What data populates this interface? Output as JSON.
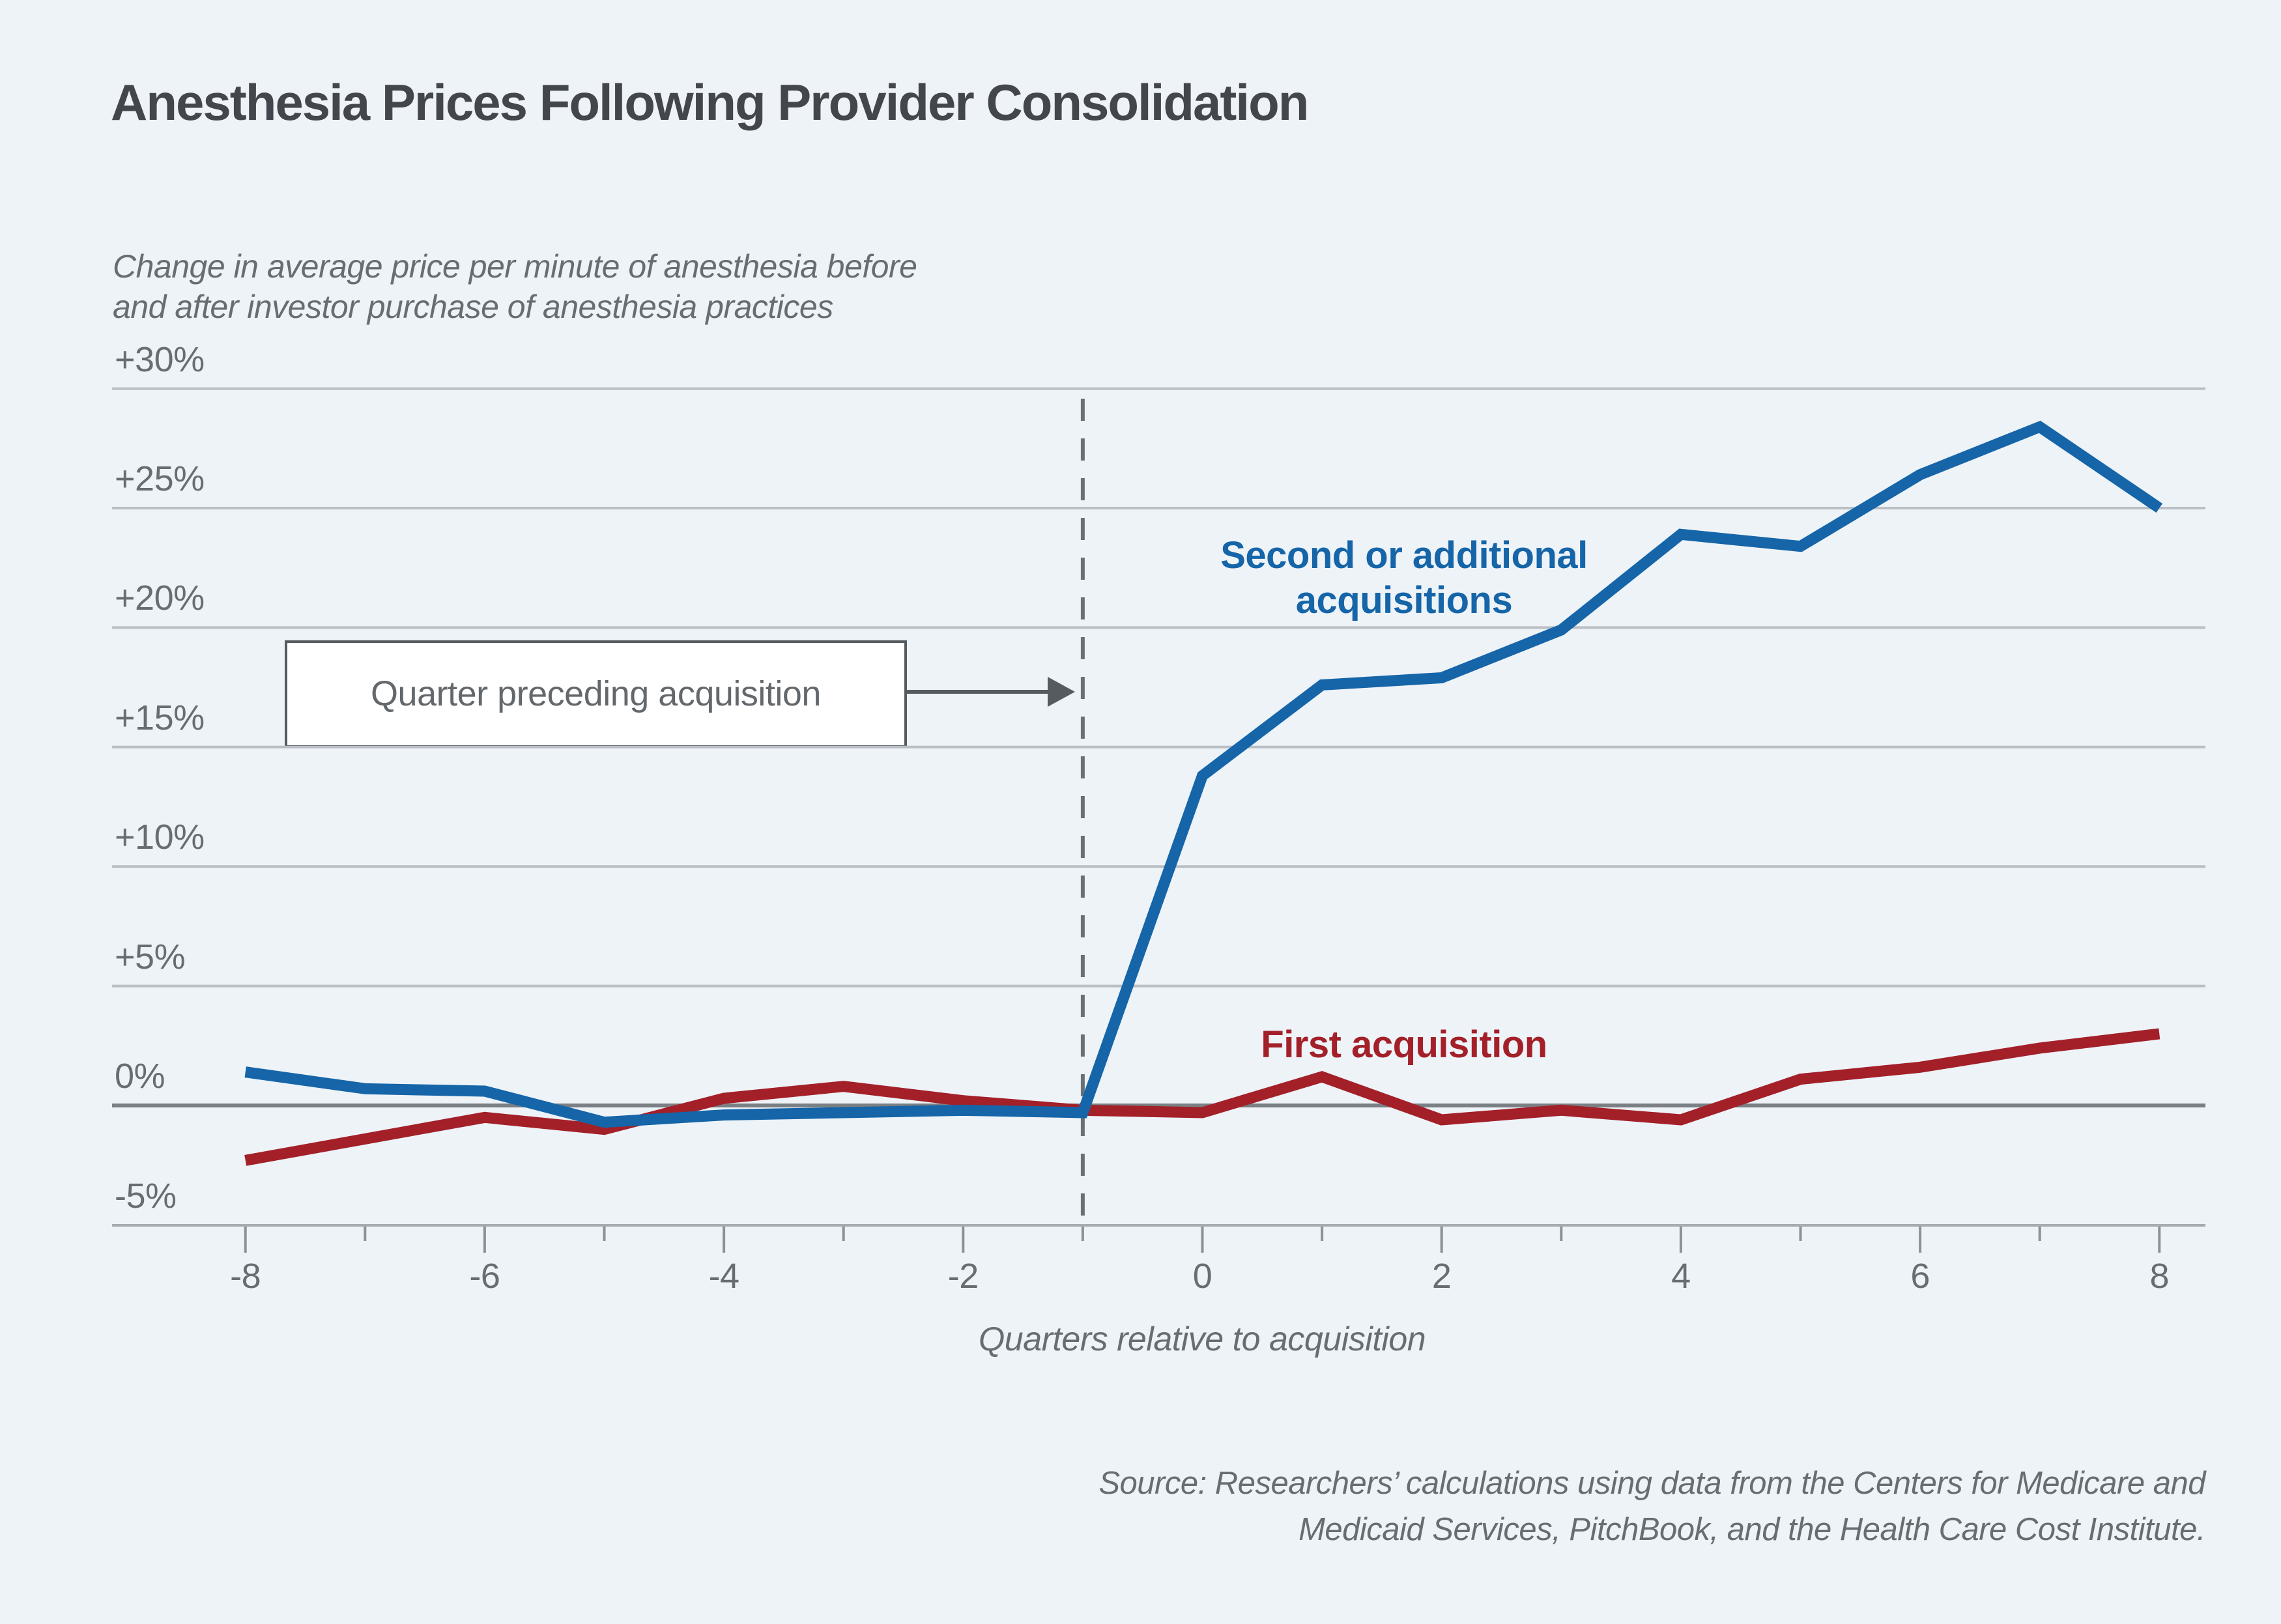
{
  "page": {
    "background": "#eef3f8"
  },
  "header": {
    "title": "Anesthesia Prices Following Provider Consolidation",
    "subtitle_line1": "Change in average price per minute of anesthesia before",
    "subtitle_line2": "and after investor purchase of anesthesia practices"
  },
  "annotation": {
    "box_label": "Quarter preceding acquisition"
  },
  "legend": {
    "blue_line1": "Second or additional",
    "blue_line2": "acquisitions",
    "red_label": "First acquisition"
  },
  "axis": {
    "x_title": "Quarters relative to acquisition"
  },
  "source": {
    "line1": "Source: Researchers’ calculations using data from the Centers for Medicare and",
    "line2": "Medicaid Services, PitchBook, and the Health Care Cost Institute."
  },
  "colors": {
    "background": "#eef3f8",
    "title_text": "#43474d",
    "gray_text": "#686d72",
    "gridline": "#b9bfc5",
    "zero_line": "#7a7f84",
    "axis_line": "#a6acb2",
    "tick": "#8b9197",
    "dashed_line": "#6b7075",
    "arrow": "#565b60",
    "blue_series": "#1565a8",
    "red_series": "#a32029"
  },
  "chart_data": {
    "type": "line",
    "title": "Anesthesia Prices Following Provider Consolidation",
    "subtitle": "Change in average price per minute of anesthesia before and after investor purchase of anesthesia practices",
    "xlabel": "Quarters relative to acquisition",
    "ylabel": "",
    "grid": true,
    "legend_position": "inline-labels",
    "x": [
      -8,
      -7,
      -6,
      -5,
      -4,
      -3,
      -2,
      -1,
      0,
      1,
      2,
      3,
      4,
      5,
      6,
      7,
      8
    ],
    "series": [
      {
        "name": "First acquisition",
        "color": "#a32029",
        "values": [
          -2.3,
          -1.4,
          -0.5,
          -1.0,
          0.3,
          0.8,
          0.2,
          -0.2,
          -0.3,
          1.2,
          -0.6,
          -0.2,
          -0.6,
          1.1,
          1.6,
          2.4,
          3.0
        ]
      },
      {
        "name": "Second or additional acquisitions",
        "color": "#1565a8",
        "values": [
          1.4,
          0.7,
          0.6,
          -0.7,
          -0.4,
          -0.3,
          -0.2,
          -0.3,
          13.8,
          17.6,
          17.9,
          19.9,
          23.9,
          23.4,
          26.4,
          28.4,
          25.0
        ]
      }
    ],
    "ylim": [
      -5,
      30
    ],
    "xlim": [
      -8,
      8
    ],
    "ytick_values": [
      30,
      25,
      20,
      15,
      10,
      5,
      0,
      -5
    ],
    "ytick_labels": [
      "+30%",
      "+25%",
      "+20%",
      "+15%",
      "+10%",
      "+5%",
      "0%",
      "-5%"
    ],
    "xtick_values": [
      -8,
      -6,
      -4,
      -2,
      0,
      2,
      4,
      6,
      8
    ],
    "xtick_labels": [
      "-8",
      "-6",
      "-4",
      "-2",
      "0",
      "2",
      "4",
      "6",
      "8"
    ],
    "minor_xtick_values": [
      -7,
      -5,
      -3,
      -1,
      1,
      3,
      5,
      7
    ],
    "event_line_x": -1,
    "event_annotation": "Quarter preceding acquisition"
  }
}
